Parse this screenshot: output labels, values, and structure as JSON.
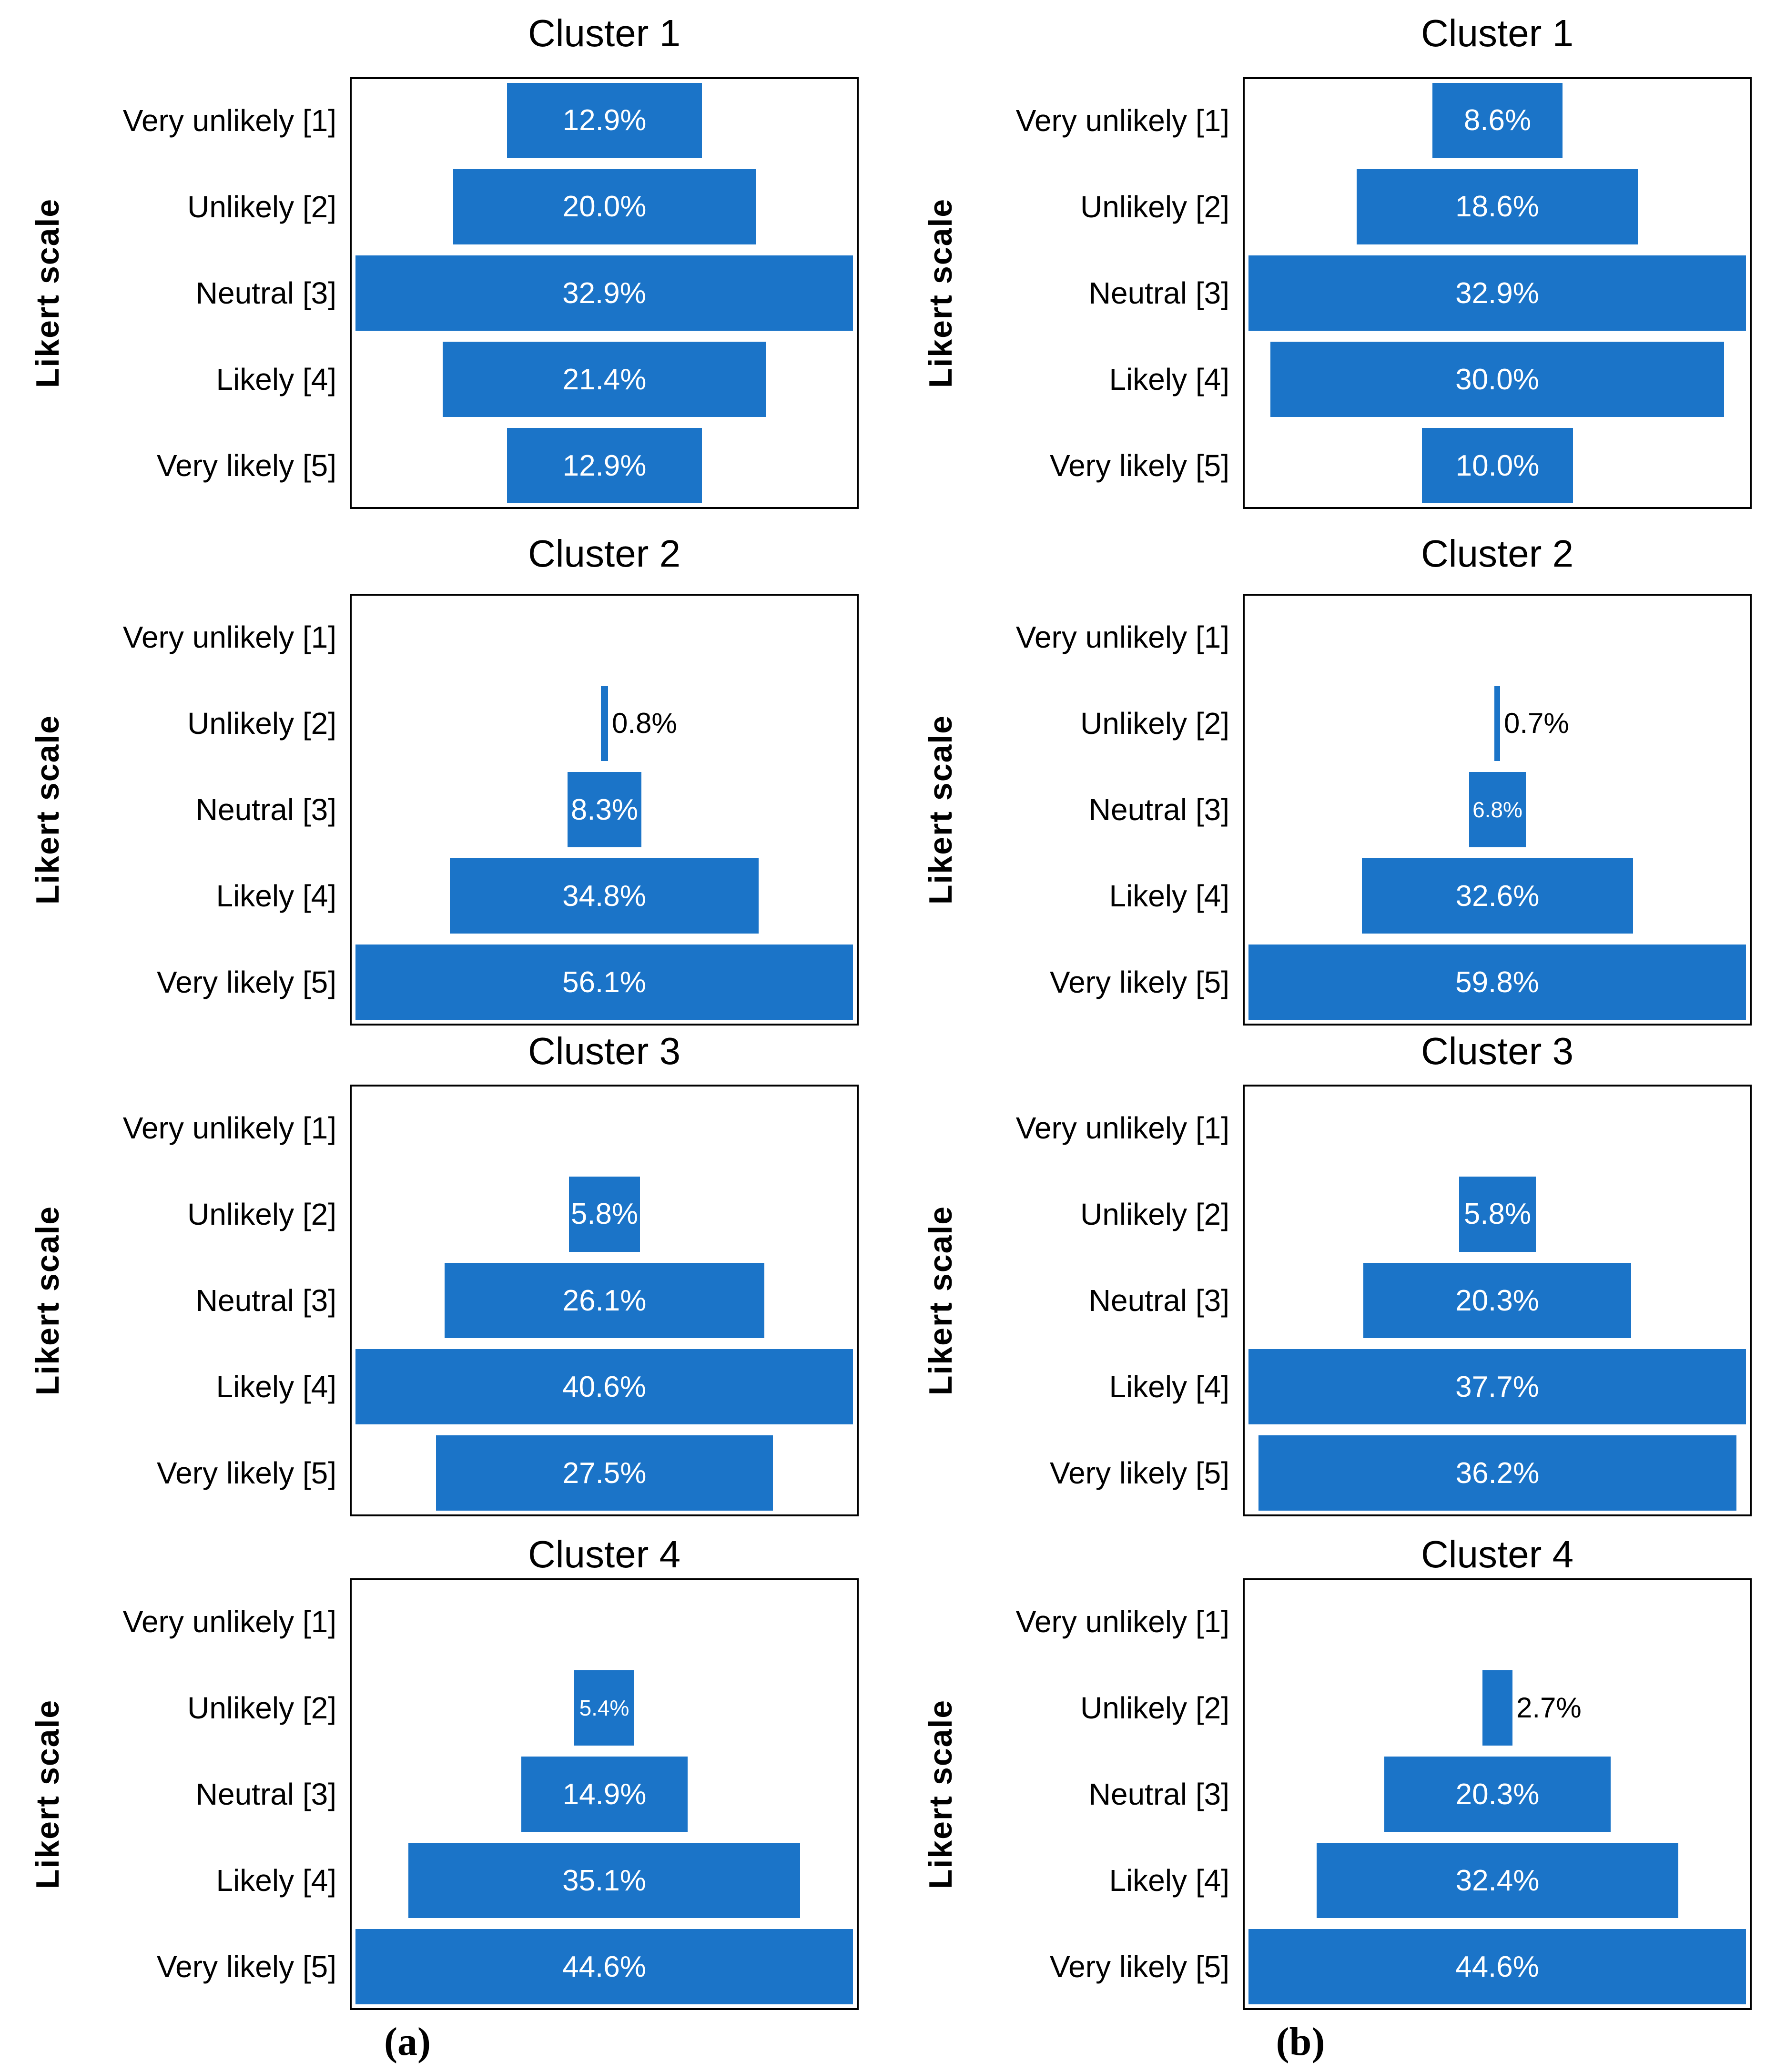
{
  "figure": {
    "ylabel": "Likert scale",
    "captions": [
      "(a)",
      "(b)"
    ],
    "categories": [
      "Very unlikely [1]",
      "Unlikely [2]",
      "Neutral [3]",
      "Likely [4]",
      "Very likely [5]"
    ],
    "colors": {
      "bar": "#1b74c8",
      "bar_label_inside": "#ffffff",
      "bar_label_outside": "#000000",
      "text": "#000000",
      "plot_border": "#000000",
      "background": "#ffffff"
    }
  },
  "chart_data": [
    {
      "type": "bar",
      "panel": "a",
      "row": 0,
      "title": "Cluster 1",
      "orientation": "horizontal_centered",
      "ylabel": "Likert scale",
      "unit": "%",
      "categories": [
        "Very unlikely [1]",
        "Unlikely [2]",
        "Neutral [3]",
        "Likely [4]",
        "Very likely [5]"
      ],
      "values": [
        12.9,
        20.0,
        32.9,
        21.4,
        12.9
      ],
      "value_labels": [
        "12.9%",
        "20.0%",
        "32.9%",
        "21.4%",
        "12.9%"
      ]
    },
    {
      "type": "bar",
      "panel": "a",
      "row": 1,
      "title": "Cluster 2",
      "orientation": "horizontal_centered",
      "ylabel": "Likert scale",
      "unit": "%",
      "categories": [
        "Very unlikely [1]",
        "Unlikely [2]",
        "Neutral [3]",
        "Likely [4]",
        "Very likely [5]"
      ],
      "values": [
        0,
        0.8,
        8.3,
        34.8,
        56.1
      ],
      "value_labels": [
        "",
        "0.8%",
        "8.3%",
        "34.8%",
        "56.1%"
      ]
    },
    {
      "type": "bar",
      "panel": "a",
      "row": 2,
      "title": "Cluster 3",
      "orientation": "horizontal_centered",
      "ylabel": "Likert scale",
      "unit": "%",
      "categories": [
        "Very unlikely [1]",
        "Unlikely [2]",
        "Neutral [3]",
        "Likely [4]",
        "Very likely [5]"
      ],
      "values": [
        0,
        5.8,
        26.1,
        40.6,
        27.5
      ],
      "value_labels": [
        "",
        "5.8%",
        "26.1%",
        "40.6%",
        "27.5%"
      ]
    },
    {
      "type": "bar",
      "panel": "a",
      "row": 3,
      "title": "Cluster 4",
      "orientation": "horizontal_centered",
      "ylabel": "Likert scale",
      "unit": "%",
      "categories": [
        "Very unlikely [1]",
        "Unlikely [2]",
        "Neutral [3]",
        "Likely [4]",
        "Very likely [5]"
      ],
      "values": [
        0,
        5.4,
        14.9,
        35.1,
        44.6
      ],
      "value_labels": [
        "",
        "5.4%",
        "14.9%",
        "35.1%",
        "44.6%"
      ]
    },
    {
      "type": "bar",
      "panel": "b",
      "row": 0,
      "title": "Cluster 1",
      "orientation": "horizontal_centered",
      "ylabel": "Likert scale",
      "unit": "%",
      "categories": [
        "Very unlikely [1]",
        "Unlikely [2]",
        "Neutral [3]",
        "Likely [4]",
        "Very likely [5]"
      ],
      "values": [
        8.6,
        18.6,
        32.9,
        30.0,
        10.0
      ],
      "value_labels": [
        "8.6%",
        "18.6%",
        "32.9%",
        "30.0%",
        "10.0%"
      ]
    },
    {
      "type": "bar",
      "panel": "b",
      "row": 1,
      "title": "Cluster 2",
      "orientation": "horizontal_centered",
      "ylabel": "Likert scale",
      "unit": "%",
      "categories": [
        "Very unlikely [1]",
        "Unlikely [2]",
        "Neutral [3]",
        "Likely [4]",
        "Very likely [5]"
      ],
      "values": [
        0,
        0.7,
        6.8,
        32.6,
        59.8
      ],
      "value_labels": [
        "",
        "0.7%",
        "6.8%",
        "32.6%",
        "59.8%"
      ]
    },
    {
      "type": "bar",
      "panel": "b",
      "row": 2,
      "title": "Cluster 3",
      "orientation": "horizontal_centered",
      "ylabel": "Likert scale",
      "unit": "%",
      "categories": [
        "Very unlikely [1]",
        "Unlikely [2]",
        "Neutral [3]",
        "Likely [4]",
        "Very likely [5]"
      ],
      "values": [
        0,
        5.8,
        20.3,
        37.7,
        36.2
      ],
      "value_labels": [
        "",
        "5.8%",
        "20.3%",
        "37.7%",
        "36.2%"
      ]
    },
    {
      "type": "bar",
      "panel": "b",
      "row": 3,
      "title": "Cluster 4",
      "orientation": "horizontal_centered",
      "ylabel": "Likert scale",
      "unit": "%",
      "categories": [
        "Very unlikely [1]",
        "Unlikely [2]",
        "Neutral [3]",
        "Likely [4]",
        "Very likely [5]"
      ],
      "values": [
        0,
        2.7,
        20.3,
        32.4,
        44.6
      ],
      "value_labels": [
        "",
        "2.7%",
        "20.3%",
        "32.4%",
        "44.6%"
      ]
    }
  ]
}
